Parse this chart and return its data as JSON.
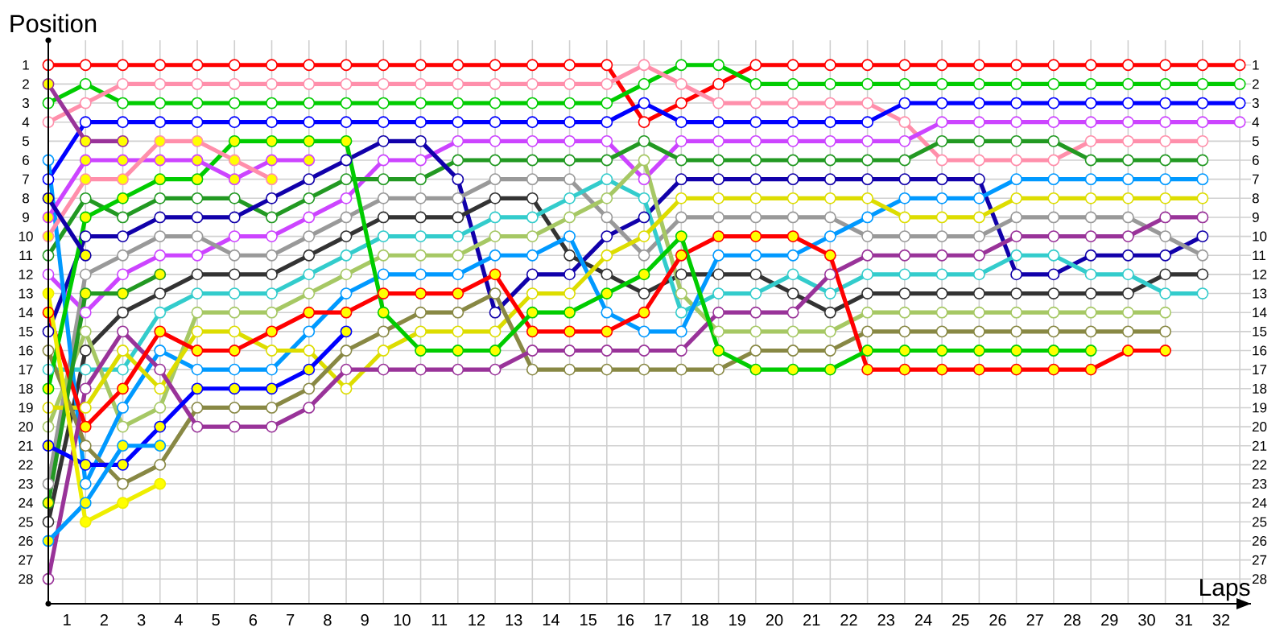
{
  "chart_data": {
    "type": "line",
    "xlabel": "Laps",
    "ylabel": "Position",
    "x": [
      0,
      1,
      2,
      3,
      4,
      5,
      6,
      7,
      8,
      9,
      10,
      11,
      12,
      13,
      14,
      15,
      16,
      17,
      18,
      19,
      20,
      21,
      22,
      23,
      24,
      25,
      26,
      27,
      28,
      29,
      30,
      31,
      32
    ],
    "xlim": [
      0,
      32.3
    ],
    "ylim": [
      29.3,
      -0.3
    ],
    "y2lim": [
      29.3,
      -0.3
    ],
    "xticks": [
      {
        "value": 0.5,
        "label": "1"
      },
      {
        "value": 1.5,
        "label": "2"
      },
      {
        "value": 2.5,
        "label": "3"
      },
      {
        "value": 3.5,
        "label": "4"
      },
      {
        "value": 4.5,
        "label": "5"
      },
      {
        "value": 5.5,
        "label": "6"
      },
      {
        "value": 6.5,
        "label": "7"
      },
      {
        "value": 7.5,
        "label": "8"
      },
      {
        "value": 8.5,
        "label": "9"
      },
      {
        "value": 9.5,
        "label": "10"
      },
      {
        "value": 10.5,
        "label": "11"
      },
      {
        "value": 11.5,
        "label": "12"
      },
      {
        "value": 12.5,
        "label": "13"
      },
      {
        "value": 13.5,
        "label": "14"
      },
      {
        "value": 14.5,
        "label": "15"
      },
      {
        "value": 15.5,
        "label": "16"
      },
      {
        "value": 16.5,
        "label": "17"
      },
      {
        "value": 17.5,
        "label": "18"
      },
      {
        "value": 18.5,
        "label": "19"
      },
      {
        "value": 19.5,
        "label": "20"
      },
      {
        "value": 20.5,
        "label": "21"
      },
      {
        "value": 21.5,
        "label": "22"
      },
      {
        "value": 22.5,
        "label": "23"
      },
      {
        "value": 23.5,
        "label": "24"
      },
      {
        "value": 24.5,
        "label": "25"
      },
      {
        "value": 25.5,
        "label": "26"
      },
      {
        "value": 26.5,
        "label": "27"
      },
      {
        "value": 27.5,
        "label": "28"
      },
      {
        "value": 28.5,
        "label": "29"
      },
      {
        "value": 29.5,
        "label": "30"
      },
      {
        "value": 30.5,
        "label": "31"
      },
      {
        "value": 31.5,
        "label": "32"
      }
    ],
    "yticks": [
      1,
      2,
      3,
      4,
      5,
      6,
      7,
      8,
      9,
      10,
      11,
      12,
      13,
      14,
      15,
      16,
      17,
      18,
      19,
      20,
      21,
      22,
      23,
      24,
      25,
      26,
      27,
      28
    ],
    "y2ticks": [
      1,
      2,
      3,
      4,
      5,
      6,
      7,
      8,
      9,
      10,
      11,
      12,
      13,
      14,
      15,
      16,
      17,
      18,
      19,
      20,
      21,
      22,
      23,
      24,
      25,
      26,
      27,
      28
    ],
    "grid": true,
    "marker": "circle",
    "line_style": "solid",
    "series": [
      {
        "color": "#ff0000",
        "values": [
          1,
          1,
          1,
          1,
          1,
          1,
          1,
          1,
          1,
          1,
          1,
          1,
          1,
          1,
          1,
          1,
          4,
          3,
          2,
          1,
          1,
          1,
          1,
          1,
          1,
          1,
          1,
          1,
          1,
          1,
          1,
          1,
          1
        ]
      },
      {
        "color": "#00cc00",
        "values": [
          3,
          2,
          3,
          3,
          3,
          3,
          3,
          3,
          3,
          3,
          3,
          3,
          3,
          3,
          3,
          3,
          2,
          1,
          1,
          2,
          2,
          2,
          2,
          2,
          2,
          2,
          2,
          2,
          2,
          2,
          2,
          2,
          2
        ]
      },
      {
        "color": "#ff8fab",
        "values": [
          4,
          3,
          2,
          2,
          2,
          2,
          2,
          2,
          2,
          2,
          2,
          2,
          2,
          2,
          2,
          2,
          1,
          2,
          3,
          3,
          3,
          3,
          3,
          4,
          6,
          6,
          6,
          6,
          5,
          5,
          5,
          5,
          null
        ]
      },
      {
        "color": "#0000ff",
        "values": [
          7,
          4,
          4,
          4,
          4,
          4,
          4,
          4,
          4,
          4,
          4,
          4,
          4,
          4,
          4,
          4,
          3,
          4,
          4,
          4,
          4,
          4,
          4,
          3,
          3,
          3,
          3,
          3,
          3,
          3,
          3,
          3,
          3
        ]
      },
      {
        "color": "#cc44ff",
        "values": [
          12,
          14,
          12,
          11,
          11,
          10,
          10,
          9,
          8,
          6,
          6,
          5,
          5,
          5,
          5,
          5,
          7,
          5,
          5,
          5,
          5,
          5,
          5,
          5,
          4,
          4,
          4,
          4,
          4,
          4,
          4,
          4,
          4
        ]
      },
      {
        "color": "#229922",
        "values": [
          11,
          8,
          9,
          8,
          8,
          8,
          9,
          8,
          7,
          7,
          7,
          6,
          6,
          6,
          6,
          6,
          5,
          6,
          6,
          6,
          6,
          6,
          6,
          6,
          5,
          5,
          5,
          5,
          6,
          6,
          6,
          6,
          null
        ]
      },
      {
        "color": "#1100aa",
        "values": [
          15,
          10,
          10,
          9,
          9,
          9,
          8,
          7,
          6,
          5,
          5,
          7,
          14,
          12,
          12,
          10,
          9,
          7,
          7,
          7,
          7,
          7,
          7,
          7,
          7,
          7,
          12,
          12,
          11,
          11,
          11,
          10,
          null
        ]
      },
      {
        "color": "#999999",
        "values": [
          23,
          12,
          11,
          10,
          10,
          11,
          11,
          10,
          9,
          8,
          8,
          8,
          7,
          7,
          7,
          9,
          11,
          9,
          9,
          9,
          9,
          9,
          10,
          10,
          10,
          10,
          9,
          9,
          9,
          9,
          10,
          11,
          null
        ]
      },
      {
        "color": "#333333",
        "values": [
          25,
          16,
          14,
          13,
          12,
          12,
          12,
          11,
          10,
          9,
          9,
          9,
          8,
          8,
          11,
          12,
          13,
          12,
          12,
          12,
          13,
          14,
          13,
          13,
          13,
          13,
          13,
          13,
          13,
          13,
          12,
          12,
          null
        ]
      },
      {
        "color": "#33cccc",
        "values": [
          17,
          17,
          17,
          14,
          13,
          13,
          13,
          12,
          11,
          10,
          10,
          10,
          9,
          9,
          8,
          7,
          8,
          14,
          13,
          13,
          12,
          13,
          12,
          12,
          12,
          12,
          11,
          11,
          12,
          12,
          13,
          13,
          null
        ]
      },
      {
        "color": "#a6c864",
        "values": [
          20,
          15,
          20,
          19,
          14,
          14,
          14,
          13,
          12,
          11,
          11,
          11,
          10,
          10,
          9,
          8,
          6,
          13,
          15,
          15,
          15,
          15,
          14,
          14,
          14,
          14,
          14,
          14,
          14,
          14,
          14,
          null,
          null
        ]
      },
      {
        "color": "#0099ff",
        "values": [
          6,
          23,
          19,
          16,
          17,
          17,
          17,
          15,
          13,
          12,
          12,
          12,
          11,
          11,
          10,
          14,
          15,
          15,
          11,
          11,
          11,
          10,
          9,
          8,
          8,
          8,
          7,
          7,
          7,
          7,
          7,
          7,
          null
        ]
      },
      {
        "color": "#dddd00",
        "values": [
          19,
          19,
          16,
          18,
          15,
          15,
          16,
          16,
          18,
          16,
          15,
          15,
          15,
          13,
          13,
          11,
          10,
          8,
          8,
          8,
          8,
          8,
          8,
          9,
          9,
          9,
          8,
          8,
          8,
          8,
          8,
          8,
          null
        ]
      },
      {
        "color": "#888844",
        "values": [
          16,
          21,
          23,
          22,
          19,
          19,
          19,
          18,
          16,
          15,
          14,
          14,
          13,
          17,
          17,
          17,
          17,
          17,
          17,
          16,
          16,
          16,
          15,
          15,
          15,
          15,
          15,
          15,
          15,
          15,
          15,
          null,
          null
        ]
      },
      {
        "color": "#993399",
        "values": [
          28,
          18,
          15,
          17,
          20,
          20,
          20,
          19,
          17,
          17,
          17,
          17,
          17,
          16,
          16,
          16,
          16,
          16,
          14,
          14,
          14,
          12,
          11,
          11,
          11,
          11,
          10,
          10,
          10,
          10,
          9,
          9,
          null
        ]
      },
      {
        "color": "#ff0000",
        "values": [
          14,
          20,
          18,
          15,
          16,
          16,
          15,
          14,
          14,
          13,
          13,
          13,
          12,
          15,
          15,
          15,
          14,
          11,
          10,
          10,
          10,
          11,
          17,
          17,
          17,
          17,
          17,
          17,
          17,
          16,
          16,
          null,
          null
        ],
        "colors": [
          "#ffff00",
          "#ffff00",
          "#ffff00",
          "#ffff00",
          "#ffff00",
          "#ffff00",
          "#ffff00",
          "#ffff00",
          "#ffff00",
          "#ffff00",
          "#ffff00",
          "#ffff00",
          "#ffff00",
          "#ffff00",
          "#ffff00",
          "#ffff00",
          "#ffff00",
          "#ffff00",
          "#ffff00",
          "#ffff00",
          "#ffff00",
          "#ffff00",
          "#ffff00",
          "#ffff00",
          "#ffff00",
          "#ffff00",
          "#ffff00",
          "#ffff00",
          "#ffff00",
          "#ffff00",
          "#ffff00",
          null,
          null
        ]
      },
      {
        "color": "#00cc00",
        "values": [
          18,
          9,
          8,
          7,
          7,
          5,
          5,
          5,
          5,
          14,
          16,
          16,
          16,
          14,
          14,
          13,
          12,
          10,
          16,
          17,
          17,
          17,
          16,
          16,
          16,
          16,
          16,
          16,
          16,
          null,
          null,
          null,
          null
        ],
        "colors": [
          "#ffff00",
          "#ffff00",
          "#ffff00",
          "#ffff00",
          "#ffff00",
          "#ffff00",
          "#ffff00",
          "#ffff00",
          "#ffff00",
          "#ffff00",
          "#ffff00",
          "#ffff00",
          "#ffff00",
          "#ffff00",
          "#ffff00",
          "#ffff00",
          "#ffff00",
          "#ffff00",
          "#ffff00",
          "#ffff00",
          "#ffff00",
          "#ffff00",
          "#ffff00",
          "#ffff00",
          "#ffff00",
          "#ffff00",
          "#ffff00",
          "#ffff00",
          "#ffff00",
          null,
          null,
          null,
          null
        ]
      },
      {
        "color": "#cc44ff",
        "values": [
          9,
          6,
          6,
          6,
          6,
          7,
          6,
          6,
          null,
          null,
          null,
          null,
          null,
          null,
          null,
          null,
          null,
          null,
          null,
          null,
          null,
          null,
          null,
          null,
          null,
          null,
          null,
          null,
          null,
          null,
          null,
          null,
          null
        ],
        "colors": [
          "#ffff00",
          "#ffff00",
          "#ffff00",
          "#ffff00",
          "#ffff00",
          "#ffff00",
          "#ffff00",
          "#ffff00",
          null,
          null,
          null,
          null,
          null,
          null,
          null,
          null,
          null,
          null,
          null,
          null,
          null,
          null,
          null,
          null,
          null,
          null,
          null,
          null,
          null,
          null,
          null,
          null,
          null
        ]
      },
      {
        "color": "#ff8fab",
        "values": [
          10,
          7,
          7,
          5,
          5,
          6,
          7,
          null,
          null,
          null,
          null,
          null,
          null,
          null,
          null,
          null,
          null,
          null,
          null,
          null,
          null,
          null,
          null,
          null,
          null,
          null,
          null,
          null,
          null,
          null,
          null,
          null,
          null
        ],
        "colors": [
          "#ffff00",
          "#ffff00",
          "#ffff00",
          "#ffff00",
          "#ffff00",
          "#ffff00",
          "#ffff00",
          null,
          null,
          null,
          null,
          null,
          null,
          null,
          null,
          null,
          null,
          null,
          null,
          null,
          null,
          null,
          null,
          null,
          null,
          null,
          null,
          null,
          null,
          null,
          null,
          null,
          null
        ]
      },
      {
        "color": "#993399",
        "values": [
          2,
          5,
          5,
          null,
          null,
          null,
          null,
          null,
          null,
          null,
          null,
          null,
          null,
          null,
          null,
          null,
          null,
          null,
          null,
          null,
          null,
          null,
          null,
          null,
          null,
          null,
          null,
          null,
          null,
          null,
          null,
          null,
          null
        ],
        "colors": [
          "#ffff00",
          "#ffff00",
          "#ffff00",
          null,
          null,
          null,
          null,
          null,
          null,
          null,
          null,
          null,
          null,
          null,
          null,
          null,
          null,
          null,
          null,
          null,
          null,
          null,
          null,
          null,
          null,
          null,
          null,
          null,
          null,
          null,
          null,
          null,
          null
        ]
      },
      {
        "color": "#1100aa",
        "values": [
          8,
          11,
          null,
          null,
          null,
          null,
          null,
          null,
          null,
          null,
          null,
          null,
          null,
          null,
          null,
          null,
          null,
          null,
          null,
          null,
          null,
          null,
          null,
          null,
          null,
          null,
          null,
          null,
          null,
          null,
          null,
          null,
          null
        ],
        "colors": [
          "#ffff00",
          "#ffff00",
          null,
          null,
          null,
          null,
          null,
          null,
          null,
          null,
          null,
          null,
          null,
          null,
          null,
          null,
          null,
          null,
          null,
          null,
          null,
          null,
          null,
          null,
          null,
          null,
          null,
          null,
          null,
          null,
          null,
          null,
          null
        ]
      },
      {
        "color": "#229922",
        "values": [
          24,
          13,
          13,
          12,
          null,
          null,
          null,
          null,
          null,
          null,
          null,
          null,
          null,
          null,
          null,
          null,
          null,
          null,
          null,
          null,
          null,
          null,
          null,
          null,
          null,
          null,
          null,
          null,
          null,
          null,
          null,
          null,
          null
        ],
        "colors": [
          "#ffff00",
          "#ffff00",
          "#ffff00",
          "#ffff00",
          null,
          null,
          null,
          null,
          null,
          null,
          null,
          null,
          null,
          null,
          null,
          null,
          null,
          null,
          null,
          null,
          null,
          null,
          null,
          null,
          null,
          null,
          null,
          null,
          null,
          null,
          null,
          null,
          null
        ]
      },
      {
        "color": "#0000ff",
        "values": [
          21,
          22,
          22,
          20,
          18,
          18,
          18,
          17,
          15,
          null,
          null,
          null,
          null,
          null,
          null,
          null,
          null,
          null,
          null,
          null,
          null,
          null,
          null,
          null,
          null,
          null,
          null,
          null,
          null,
          null,
          null,
          null,
          null
        ],
        "colors": [
          "#ffff00",
          "#ffff00",
          "#ffff00",
          "#ffff00",
          "#ffff00",
          "#ffff00",
          "#ffff00",
          "#ffff00",
          "#ffff00",
          null,
          null,
          null,
          null,
          null,
          null,
          null,
          null,
          null,
          null,
          null,
          null,
          null,
          null,
          null,
          null,
          null,
          null,
          null,
          null,
          null,
          null,
          null,
          null
        ]
      },
      {
        "color": "#0099ff",
        "values": [
          26,
          24,
          21,
          21,
          null,
          null,
          null,
          null,
          null,
          null,
          null,
          null,
          null,
          null,
          null,
          null,
          null,
          null,
          null,
          null,
          null,
          null,
          null,
          null,
          null,
          null,
          null,
          null,
          null,
          null,
          null,
          null,
          null
        ],
        "colors": [
          "#ffff00",
          "#ffff00",
          "#ffff00",
          "#ffff00",
          null,
          null,
          null,
          null,
          null,
          null,
          null,
          null,
          null,
          null,
          null,
          null,
          null,
          null,
          null,
          null,
          null,
          null,
          null,
          null,
          null,
          null,
          null,
          null,
          null,
          null,
          null,
          null,
          null
        ]
      },
      {
        "color": "#eeee00",
        "values": [
          13,
          25,
          24,
          23,
          null,
          null,
          null,
          null,
          null,
          null,
          null,
          null,
          null,
          null,
          null,
          null,
          null,
          null,
          null,
          null,
          null,
          null,
          null,
          null,
          null,
          null,
          null,
          null,
          null,
          null,
          null,
          null,
          null
        ],
        "colors": [
          "#ffff00",
          "#ffff00",
          "#ffff00",
          "#ffff00",
          null,
          null,
          null,
          null,
          null,
          null,
          null,
          null,
          null,
          null,
          null,
          null,
          null,
          null,
          null,
          null,
          null,
          null,
          null,
          null,
          null,
          null,
          null,
          null,
          null,
          null,
          null,
          null,
          null
        ]
      }
    ]
  }
}
